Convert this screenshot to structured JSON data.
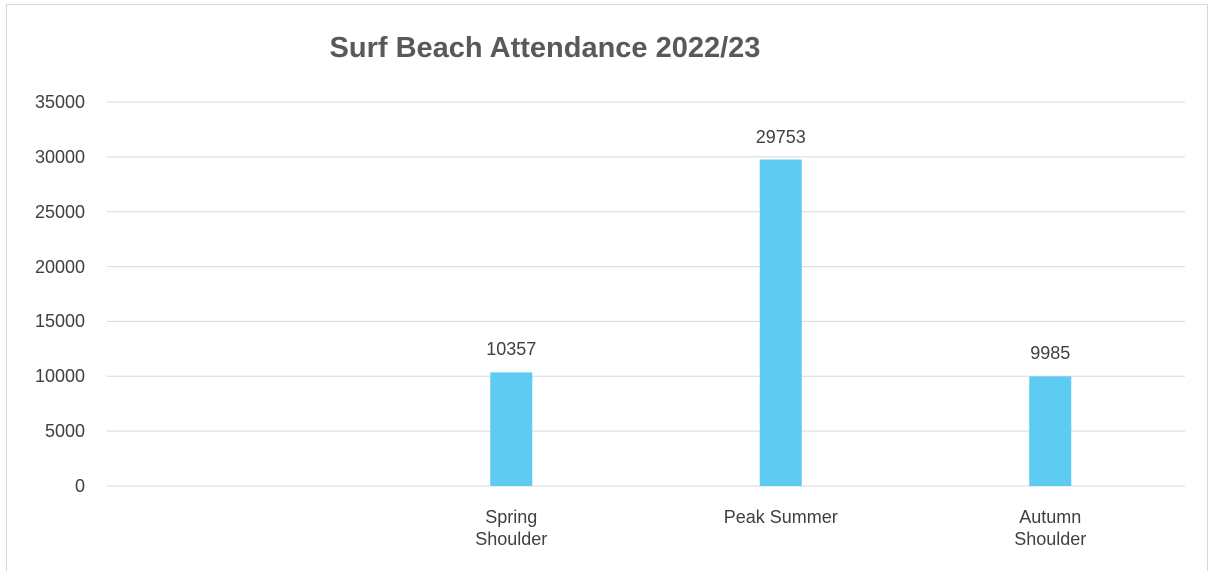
{
  "chart_data": {
    "type": "bar",
    "title": "Surf Beach Attendance 2022/23",
    "categories": [
      null,
      "Spring\nShoulder",
      "Peak Summer",
      "Autumn\nShoulder"
    ],
    "values": [
      null,
      10357,
      29753,
      9985
    ],
    "color": "#5ecbf2",
    "ylim": [
      0,
      35000
    ],
    "yticks": [
      0,
      5000,
      10000,
      15000,
      20000,
      25000,
      30000,
      35000
    ],
    "grid": true
  }
}
